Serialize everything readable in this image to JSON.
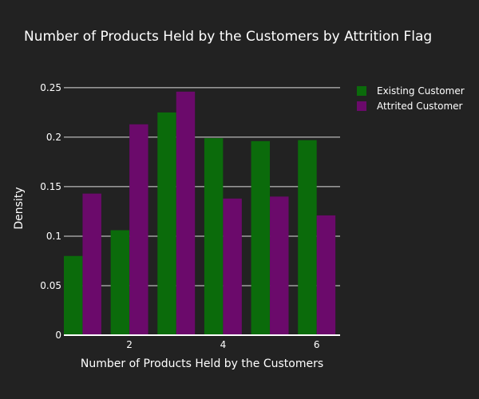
{
  "chart_data": {
    "type": "bar",
    "title": "Number of Products Held by the Customers by Attrition Flag",
    "xlabel": "Number of Products Held by the Customers",
    "ylabel": "Density",
    "x": [
      1,
      2,
      3,
      4,
      5,
      6
    ],
    "xticks": [
      2,
      4,
      6
    ],
    "xtick_labels": [
      "2",
      "4",
      "6"
    ],
    "yticks": [
      0,
      0.05,
      0.1,
      0.15,
      0.2,
      0.25
    ],
    "ytick_labels": [
      "0",
      "0.05",
      "0.1",
      "0.15",
      "0.2",
      "0.25"
    ],
    "ylim": [
      0,
      0.262
    ],
    "xlim": [
      0.6,
      6.5
    ],
    "grid": true,
    "legend_position": "top-right",
    "series": [
      {
        "name": "Existing Customer",
        "color": "#0b6b0b",
        "values": [
          0.08,
          0.106,
          0.225,
          0.199,
          0.196,
          0.197
        ]
      },
      {
        "name": "Attrited Customer",
        "color": "#6b0a6b",
        "values": [
          0.143,
          0.213,
          0.246,
          0.138,
          0.14,
          0.121
        ]
      }
    ]
  }
}
